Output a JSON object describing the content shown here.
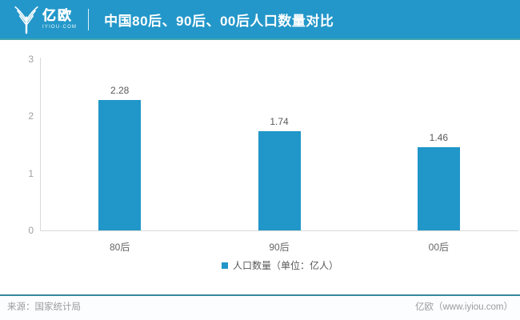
{
  "header": {
    "logo": {
      "name": "亿欧",
      "subtext": "IYIOU·COM"
    },
    "title": "中国80后、90后、00后人口数量对比"
  },
  "chart_data": {
    "type": "bar",
    "title": "中国80后、90后、00后人口数量对比",
    "categories": [
      "80后",
      "90后",
      "00后"
    ],
    "values": [
      2.28,
      1.74,
      1.46
    ],
    "value_labels": [
      "2.28",
      "1.74",
      "1.46"
    ],
    "legend": "人口数量（单位：亿人）",
    "legend_position": "bottom",
    "xlabel": "",
    "ylabel": "",
    "ylim": [
      0,
      3
    ],
    "yticks": [
      0,
      1,
      2,
      3
    ],
    "grid": false,
    "bar_color": "#2196c8"
  },
  "footer": {
    "source": "来源：国家统计局",
    "brand": "亿欧（www.iyiou.com）"
  },
  "colors": {
    "header_bg": "#2397c9",
    "header_edge": "#3fa4ae",
    "bar": "#2196c8",
    "axis_line": "#d9d9d9",
    "tick_text": "#a0a0a0",
    "value_text": "#595959",
    "footer_line": "#35899b",
    "footer_text": "#9b9b9b"
  }
}
